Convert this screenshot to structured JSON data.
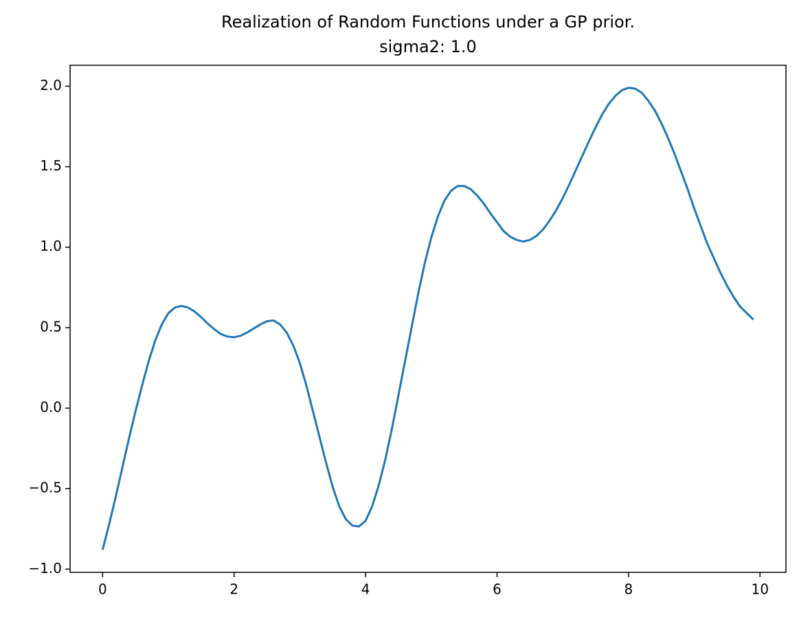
{
  "chart_data": {
    "type": "line",
    "title": "Realization of Random Functions under a GP prior.",
    "subtitle": "sigma2: 1.0",
    "x": [
      0,
      0.1,
      0.2,
      0.3,
      0.4,
      0.5,
      0.6,
      0.7,
      0.8,
      0.9,
      1,
      1.1,
      1.2,
      1.3,
      1.4,
      1.5,
      1.6,
      1.7,
      1.8,
      1.9,
      2,
      2.1,
      2.2,
      2.3,
      2.4,
      2.5,
      2.6,
      2.7,
      2.8,
      2.9,
      3,
      3.1,
      3.2,
      3.3,
      3.4,
      3.5,
      3.6,
      3.7,
      3.8,
      3.9,
      4,
      4.1,
      4.2,
      4.3,
      4.4,
      4.5,
      4.6,
      4.7,
      4.8,
      4.9,
      5,
      5.1,
      5.2,
      5.3,
      5.4,
      5.5,
      5.6,
      5.7,
      5.8,
      5.9,
      6,
      6.1,
      6.2,
      6.3,
      6.4,
      6.5,
      6.6,
      6.7,
      6.8,
      6.9,
      7,
      7.1,
      7.2,
      7.3,
      7.4,
      7.5,
      7.6,
      7.7,
      7.8,
      7.9,
      8,
      8.1,
      8.2,
      8.3,
      8.4,
      8.5,
      8.6,
      8.7,
      8.8,
      8.9,
      9,
      9.1,
      9.2,
      9.3,
      9.4,
      9.5,
      9.6,
      9.7,
      9.8,
      9.9
    ],
    "series": [
      {
        "color": "#1f77b4",
        "values": [
          -0.88,
          -0.72,
          -0.55,
          -0.37,
          -0.19,
          -0.02,
          0.14,
          0.29,
          0.42,
          0.52,
          0.59,
          0.625,
          0.635,
          0.625,
          0.6,
          0.565,
          0.525,
          0.49,
          0.46,
          0.445,
          0.44,
          0.45,
          0.47,
          0.495,
          0.52,
          0.54,
          0.545,
          0.52,
          0.47,
          0.39,
          0.28,
          0.14,
          -0.02,
          -0.18,
          -0.34,
          -0.49,
          -0.61,
          -0.69,
          -0.73,
          -0.735,
          -0.7,
          -0.61,
          -0.48,
          -0.32,
          -0.13,
          0.08,
          0.29,
          0.5,
          0.71,
          0.9,
          1.06,
          1.19,
          1.29,
          1.35,
          1.38,
          1.38,
          1.36,
          1.32,
          1.27,
          1.21,
          1.155,
          1.1,
          1.065,
          1.045,
          1.035,
          1.045,
          1.07,
          1.11,
          1.165,
          1.23,
          1.305,
          1.39,
          1.48,
          1.57,
          1.66,
          1.745,
          1.825,
          1.89,
          1.94,
          1.975,
          1.99,
          1.985,
          1.96,
          1.91,
          1.85,
          1.77,
          1.68,
          1.58,
          1.47,
          1.36,
          1.24,
          1.13,
          1.02,
          0.93,
          0.84,
          0.76,
          0.69,
          0.63,
          0.59,
          0.55
        ]
      }
    ],
    "xlim": [
      -0.495,
      10.395
    ],
    "ylim": [
      -1.02,
      2.13
    ],
    "xticks": [
      0,
      2,
      4,
      6,
      8,
      10
    ],
    "yticks": [
      {
        "value": -1,
        "label": "−1.0"
      },
      {
        "value": -0.5,
        "label": "−0.5"
      },
      {
        "value": 0,
        "label": "0.0"
      },
      {
        "value": 0.5,
        "label": "0.5"
      },
      {
        "value": 1,
        "label": "1.0"
      },
      {
        "value": 1.5,
        "label": "1.5"
      },
      {
        "value": 2,
        "label": "2.0"
      }
    ],
    "grid": false
  }
}
